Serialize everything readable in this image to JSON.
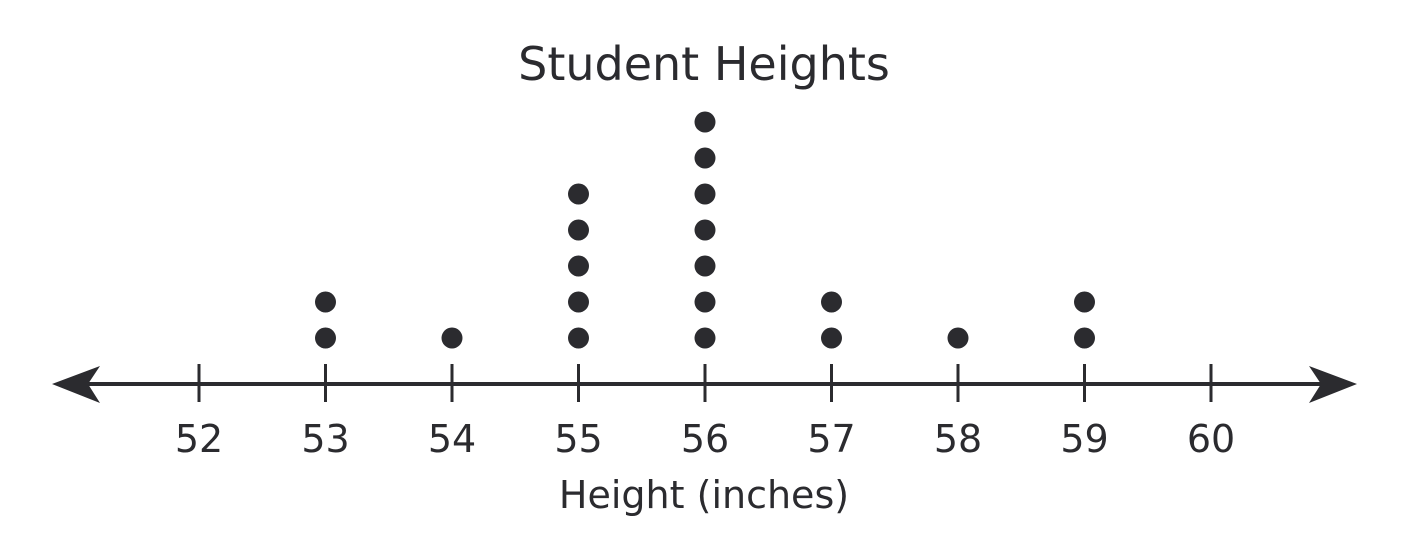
{
  "chart_data": {
    "type": "scatter",
    "subtype": "dot-plot",
    "title": "Student Heights",
    "xlabel": "Height (inches)",
    "ylabel": "",
    "xlim": [
      52,
      60
    ],
    "ticks": [
      52,
      53,
      54,
      55,
      56,
      57,
      58,
      59,
      60
    ],
    "tick_labels": [
      "52",
      "53",
      "54",
      "55",
      "56",
      "57",
      "58",
      "59",
      "60"
    ],
    "counts": [
      {
        "x": 53,
        "count": 2
      },
      {
        "x": 54,
        "count": 1
      },
      {
        "x": 55,
        "count": 5
      },
      {
        "x": 56,
        "count": 7
      },
      {
        "x": 57,
        "count": 2
      },
      {
        "x": 58,
        "count": 1
      },
      {
        "x": 59,
        "count": 2
      }
    ],
    "axis_arrows": "both-ends",
    "grid": false,
    "colors": {
      "ink": "#2b2b2f",
      "background": "#ffffff"
    }
  }
}
